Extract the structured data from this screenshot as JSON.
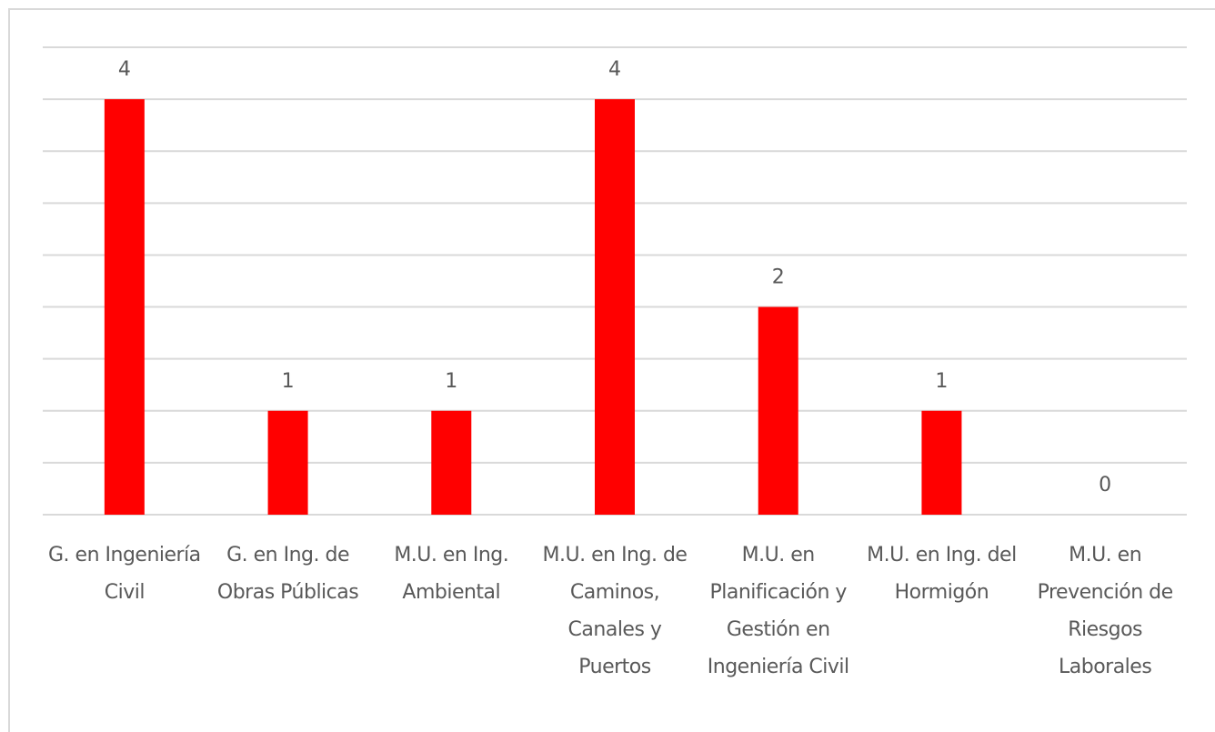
{
  "chart_data": {
    "type": "bar",
    "categories": [
      "G. en Ingeniería Civil",
      "G. en Ing. de Obras Públicas",
      "M.U. en Ing. Ambiental",
      "M.U. en Ing. de Caminos, Canales y Puertos",
      "M.U. en Planificación y Gestión en Ingeniería Civil",
      "M.U. en Ing. del Hormigón",
      "M.U. en Prevención de Riesgos Laborales"
    ],
    "values": [
      4,
      1,
      1,
      4,
      2,
      1,
      0
    ],
    "color": "#ff0000",
    "ylim": [
      0,
      4.5
    ],
    "yticks": [
      0,
      0.5,
      1,
      1.5,
      2,
      2.5,
      3,
      3.5,
      4,
      4.5
    ],
    "grid": true
  }
}
